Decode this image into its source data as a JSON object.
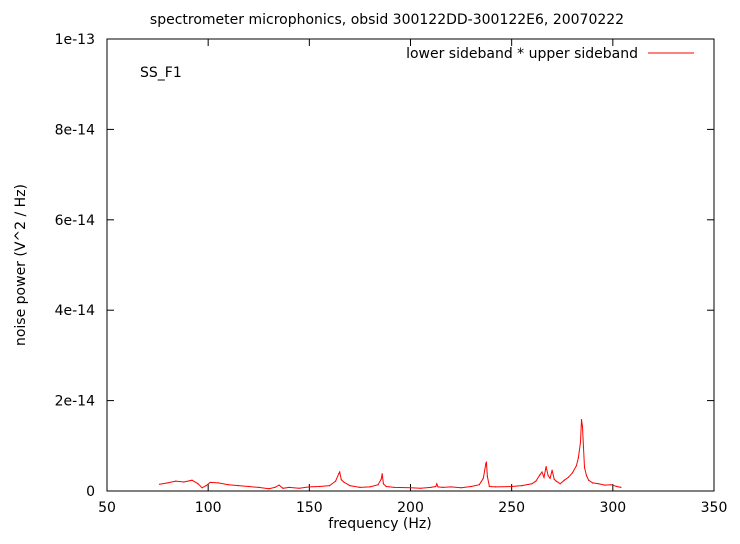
{
  "chart_data": {
    "type": "line",
    "title": "spectrometer microphonics, obsid 300122DD-300122E6, 20070222",
    "xlabel": "frequency (Hz)",
    "ylabel": "noise power (V^2 / Hz)",
    "xlim": [
      50,
      350
    ],
    "ylim": [
      0,
      1e-13
    ],
    "x_ticks": [
      50,
      100,
      150,
      200,
      250,
      300,
      350
    ],
    "x_tick_labels": [
      "50",
      "100",
      "150",
      "200",
      "250",
      "300",
      "350"
    ],
    "y_ticks": [
      0,
      2e-14,
      4e-14,
      6e-14,
      8e-14,
      1e-13
    ],
    "y_tick_labels": [
      "0",
      "2e-14",
      "4e-14",
      "6e-14",
      "8e-14",
      "1e-13"
    ],
    "annotation": "SS_F1",
    "grid": false,
    "legend_position": "top-right",
    "series": [
      {
        "name": "lower sideband * upper sideband",
        "color": "#ff0000",
        "x": [
          76,
          80,
          84,
          88,
          92,
          95,
          97,
          99,
          101,
          105,
          110,
          115,
          120,
          125,
          130,
          133,
          135,
          137,
          140,
          145,
          150,
          155,
          160,
          163,
          164.5,
          165,
          165.8,
          167,
          170,
          175,
          180,
          184,
          185.5,
          186,
          186.6,
          188,
          192,
          200,
          205,
          210,
          212.5,
          213,
          213.6,
          216,
          220,
          225,
          230,
          234,
          236,
          237.2,
          237.5,
          238,
          239,
          242,
          250,
          255,
          260,
          262,
          264,
          265,
          266,
          267,
          268,
          269,
          270,
          271,
          272,
          274,
          276,
          278,
          280,
          282,
          283,
          284,
          284.5,
          285,
          285.5,
          286,
          287,
          288,
          290,
          293,
          296,
          299,
          302,
          304
        ],
        "y": [
          1.5e-15,
          1.8e-15,
          2.2e-15,
          2e-15,
          2.4e-15,
          1.6e-15,
          7e-16,
          1.2e-15,
          1.9e-15,
          1.8e-15,
          1.4e-15,
          1.2e-15,
          1e-15,
          8e-16,
          5e-16,
          8e-16,
          1.3e-15,
          6e-16,
          8e-16,
          6e-16,
          9e-16,
          1e-15,
          1.2e-15,
          2.2e-15,
          3.8e-15,
          4.2e-15,
          2.5e-15,
          2e-15,
          1.2e-15,
          8e-16,
          9e-16,
          1.4e-15,
          2.6e-15,
          3.8e-15,
          1.6e-15,
          1e-15,
          8e-16,
          7e-16,
          6e-16,
          8e-16,
          1e-15,
          1.6e-15,
          9e-16,
          8e-16,
          9e-16,
          7e-16,
          1e-15,
          1.4e-15,
          2.8e-15,
          6e-15,
          6.4e-15,
          3.2e-15,
          1e-15,
          9e-16,
          1e-15,
          1.2e-15,
          1.6e-15,
          2.2e-15,
          3.6e-15,
          4.2e-15,
          3e-15,
          5.4e-15,
          3.4e-15,
          2.8e-15,
          4.6e-15,
          2.6e-15,
          2.2e-15,
          1.6e-15,
          2.4e-15,
          3e-15,
          4e-15,
          5.6e-15,
          7.4e-15,
          1.08e-14,
          1.58e-14,
          1.42e-14,
          9.6e-15,
          5.2e-15,
          3.4e-15,
          2.4e-15,
          1.8e-15,
          1.6e-15,
          1.3e-15,
          1.4e-15,
          1e-15,
          8e-16
        ]
      }
    ]
  }
}
